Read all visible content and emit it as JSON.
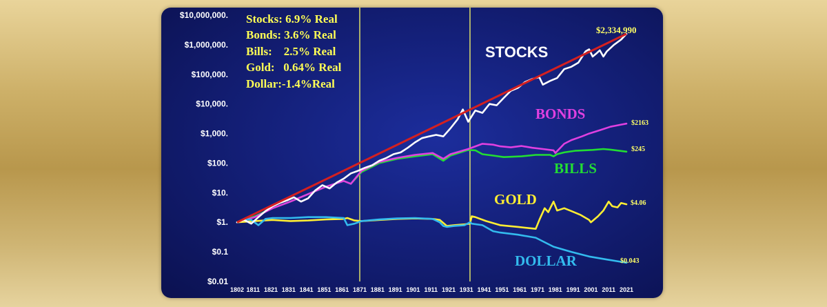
{
  "chart_data": {
    "type": "line",
    "y_scale": "log",
    "ylim": [
      0.01,
      10000000
    ],
    "y_tick_labels": [
      "$10,000,000.",
      "$1,000,000.",
      "$100,000.",
      "$10,000.",
      "$1,000.",
      "$100.",
      "$10.",
      "$1.",
      "$0.1",
      "$0.01"
    ],
    "y_tick_values": [
      10000000,
      1000000,
      100000,
      10000,
      1000,
      100,
      10,
      1,
      0.1,
      0.01
    ],
    "x_tick_labels": [
      "1802",
      "1811",
      "1821",
      "1831",
      "1841",
      "1851",
      "1861",
      "1871",
      "1881",
      "1891",
      "1901",
      "1911",
      "1921",
      "1931",
      "1941",
      "1951",
      "1961",
      "1971",
      "1981",
      "1991",
      "2001",
      "2011",
      "2021"
    ],
    "xlim": [
      1802,
      2021
    ],
    "reference_lines": [
      1871,
      1933
    ],
    "legend_lines": [
      "Stocks: 6.9% Real",
      "Bonds: 3.6% Real",
      "Bills:    2.5% Real",
      "Gold:   0.64% Real",
      "Dollar:-1.4%Real"
    ],
    "trend": {
      "color": "#d42020",
      "x": [
        1802,
        2021
      ],
      "y": [
        1,
        2334990
      ]
    },
    "series": [
      {
        "name": "STOCKS",
        "color": "#ffffff",
        "end_label": "$2,334,990",
        "x": [
          1802,
          1806,
          1810,
          1814,
          1818,
          1822,
          1826,
          1830,
          1834,
          1838,
          1842,
          1846,
          1850,
          1854,
          1858,
          1862,
          1866,
          1870,
          1874,
          1878,
          1882,
          1886,
          1890,
          1894,
          1898,
          1902,
          1906,
          1910,
          1914,
          1918,
          1922,
          1926,
          1929,
          1932,
          1936,
          1940,
          1944,
          1948,
          1952,
          1956,
          1960,
          1964,
          1968,
          1972,
          1974,
          1978,
          1982,
          1986,
          1990,
          1994,
          1998,
          2000,
          2002,
          2004,
          2006,
          2008,
          2010,
          2014,
          2018,
          2021
        ],
        "y": [
          1,
          1.2,
          0.9,
          1.5,
          2.4,
          3.5,
          4.5,
          5.5,
          7,
          5,
          6.5,
          12,
          18,
          14,
          22,
          30,
          45,
          55,
          70,
          85,
          120,
          150,
          200,
          230,
          330,
          500,
          700,
          800,
          900,
          800,
          1500,
          3000,
          6500,
          2500,
          6000,
          5000,
          10000,
          9000,
          16000,
          28000,
          35000,
          55000,
          70000,
          80000,
          45000,
          60000,
          75000,
          150000,
          180000,
          250000,
          600000,
          700000,
          400000,
          500000,
          650000,
          400000,
          600000,
          1000000,
          1500000,
          2334990
        ]
      },
      {
        "name": "BONDS",
        "color": "#e040e0",
        "end_label": "$2163",
        "x": [
          1802,
          1812,
          1822,
          1832,
          1842,
          1852,
          1862,
          1866,
          1872,
          1882,
          1892,
          1902,
          1912,
          1918,
          1922,
          1932,
          1940,
          1946,
          1950,
          1956,
          1962,
          1968,
          1974,
          1980,
          1981,
          1986,
          1990,
          1996,
          2000,
          2006,
          2012,
          2018,
          2021
        ],
        "y": [
          1,
          1.5,
          3,
          5,
          9,
          16,
          25,
          20,
          55,
          110,
          150,
          190,
          220,
          140,
          200,
          300,
          450,
          420,
          370,
          340,
          380,
          330,
          300,
          270,
          220,
          450,
          600,
          800,
          1000,
          1300,
          1700,
          2000,
          2163
        ]
      },
      {
        "name": "BILLS",
        "color": "#22dd33",
        "end_label": "$245",
        "x": [
          1802,
          1812,
          1822,
          1832,
          1842,
          1852,
          1862,
          1866,
          1872,
          1882,
          1892,
          1902,
          1912,
          1918,
          1922,
          1932,
          1936,
          1940,
          1946,
          1952,
          1962,
          1970,
          1978,
          1980,
          1982,
          1986,
          1992,
          2002,
          2008,
          2012,
          2021
        ],
        "y": [
          1,
          1.6,
          3,
          5,
          9,
          16,
          25,
          20,
          50,
          100,
          140,
          170,
          200,
          120,
          180,
          280,
          270,
          200,
          180,
          160,
          170,
          190,
          190,
          170,
          200,
          230,
          260,
          280,
          300,
          285,
          245
        ]
      },
      {
        "name": "GOLD",
        "color": "#ffee33",
        "end_label": "$4.06",
        "x": [
          1802,
          1812,
          1822,
          1832,
          1842,
          1852,
          1862,
          1864,
          1868,
          1872,
          1882,
          1892,
          1902,
          1912,
          1916,
          1920,
          1924,
          1930,
          1933,
          1934,
          1936,
          1942,
          1950,
          1960,
          1970,
          1972,
          1975,
          1977,
          1980,
          1982,
          1986,
          1990,
          1995,
          2000,
          2001,
          2005,
          2008,
          2011,
          2013,
          2016,
          2018,
          2021
        ],
        "y": [
          1,
          1.1,
          1.2,
          1.1,
          1.15,
          1.25,
          1.3,
          1.4,
          1.15,
          1.1,
          1.2,
          1.3,
          1.35,
          1.3,
          1.2,
          0.75,
          0.8,
          0.85,
          0.9,
          1.6,
          1.5,
          1.1,
          0.8,
          0.7,
          0.6,
          1.2,
          3,
          2.2,
          5,
          2.5,
          3,
          2.4,
          1.8,
          1.2,
          1.0,
          1.6,
          2.5,
          5,
          3.5,
          3.2,
          4.5,
          4.06
        ]
      },
      {
        "name": "DOLLAR",
        "color": "#33bbee",
        "end_label": "$0.043",
        "x": [
          1802,
          1806,
          1810,
          1814,
          1818,
          1822,
          1832,
          1842,
          1852,
          1862,
          1864,
          1868,
          1872,
          1882,
          1892,
          1902,
          1912,
          1916,
          1918,
          1920,
          1924,
          1930,
          1933,
          1934,
          1940,
          1946,
          1950,
          1960,
          1970,
          1980,
          1990,
          2000,
          2010,
          2021
        ],
        "y": [
          1,
          1.3,
          1.2,
          0.8,
          1.3,
          1.4,
          1.4,
          1.5,
          1.5,
          1.4,
          0.8,
          0.9,
          1.1,
          1.25,
          1.35,
          1.4,
          1.3,
          1.0,
          0.75,
          0.7,
          0.75,
          0.8,
          1.0,
          0.9,
          0.8,
          0.5,
          0.45,
          0.38,
          0.3,
          0.15,
          0.1,
          0.07,
          0.055,
          0.043
        ]
      }
    ]
  }
}
